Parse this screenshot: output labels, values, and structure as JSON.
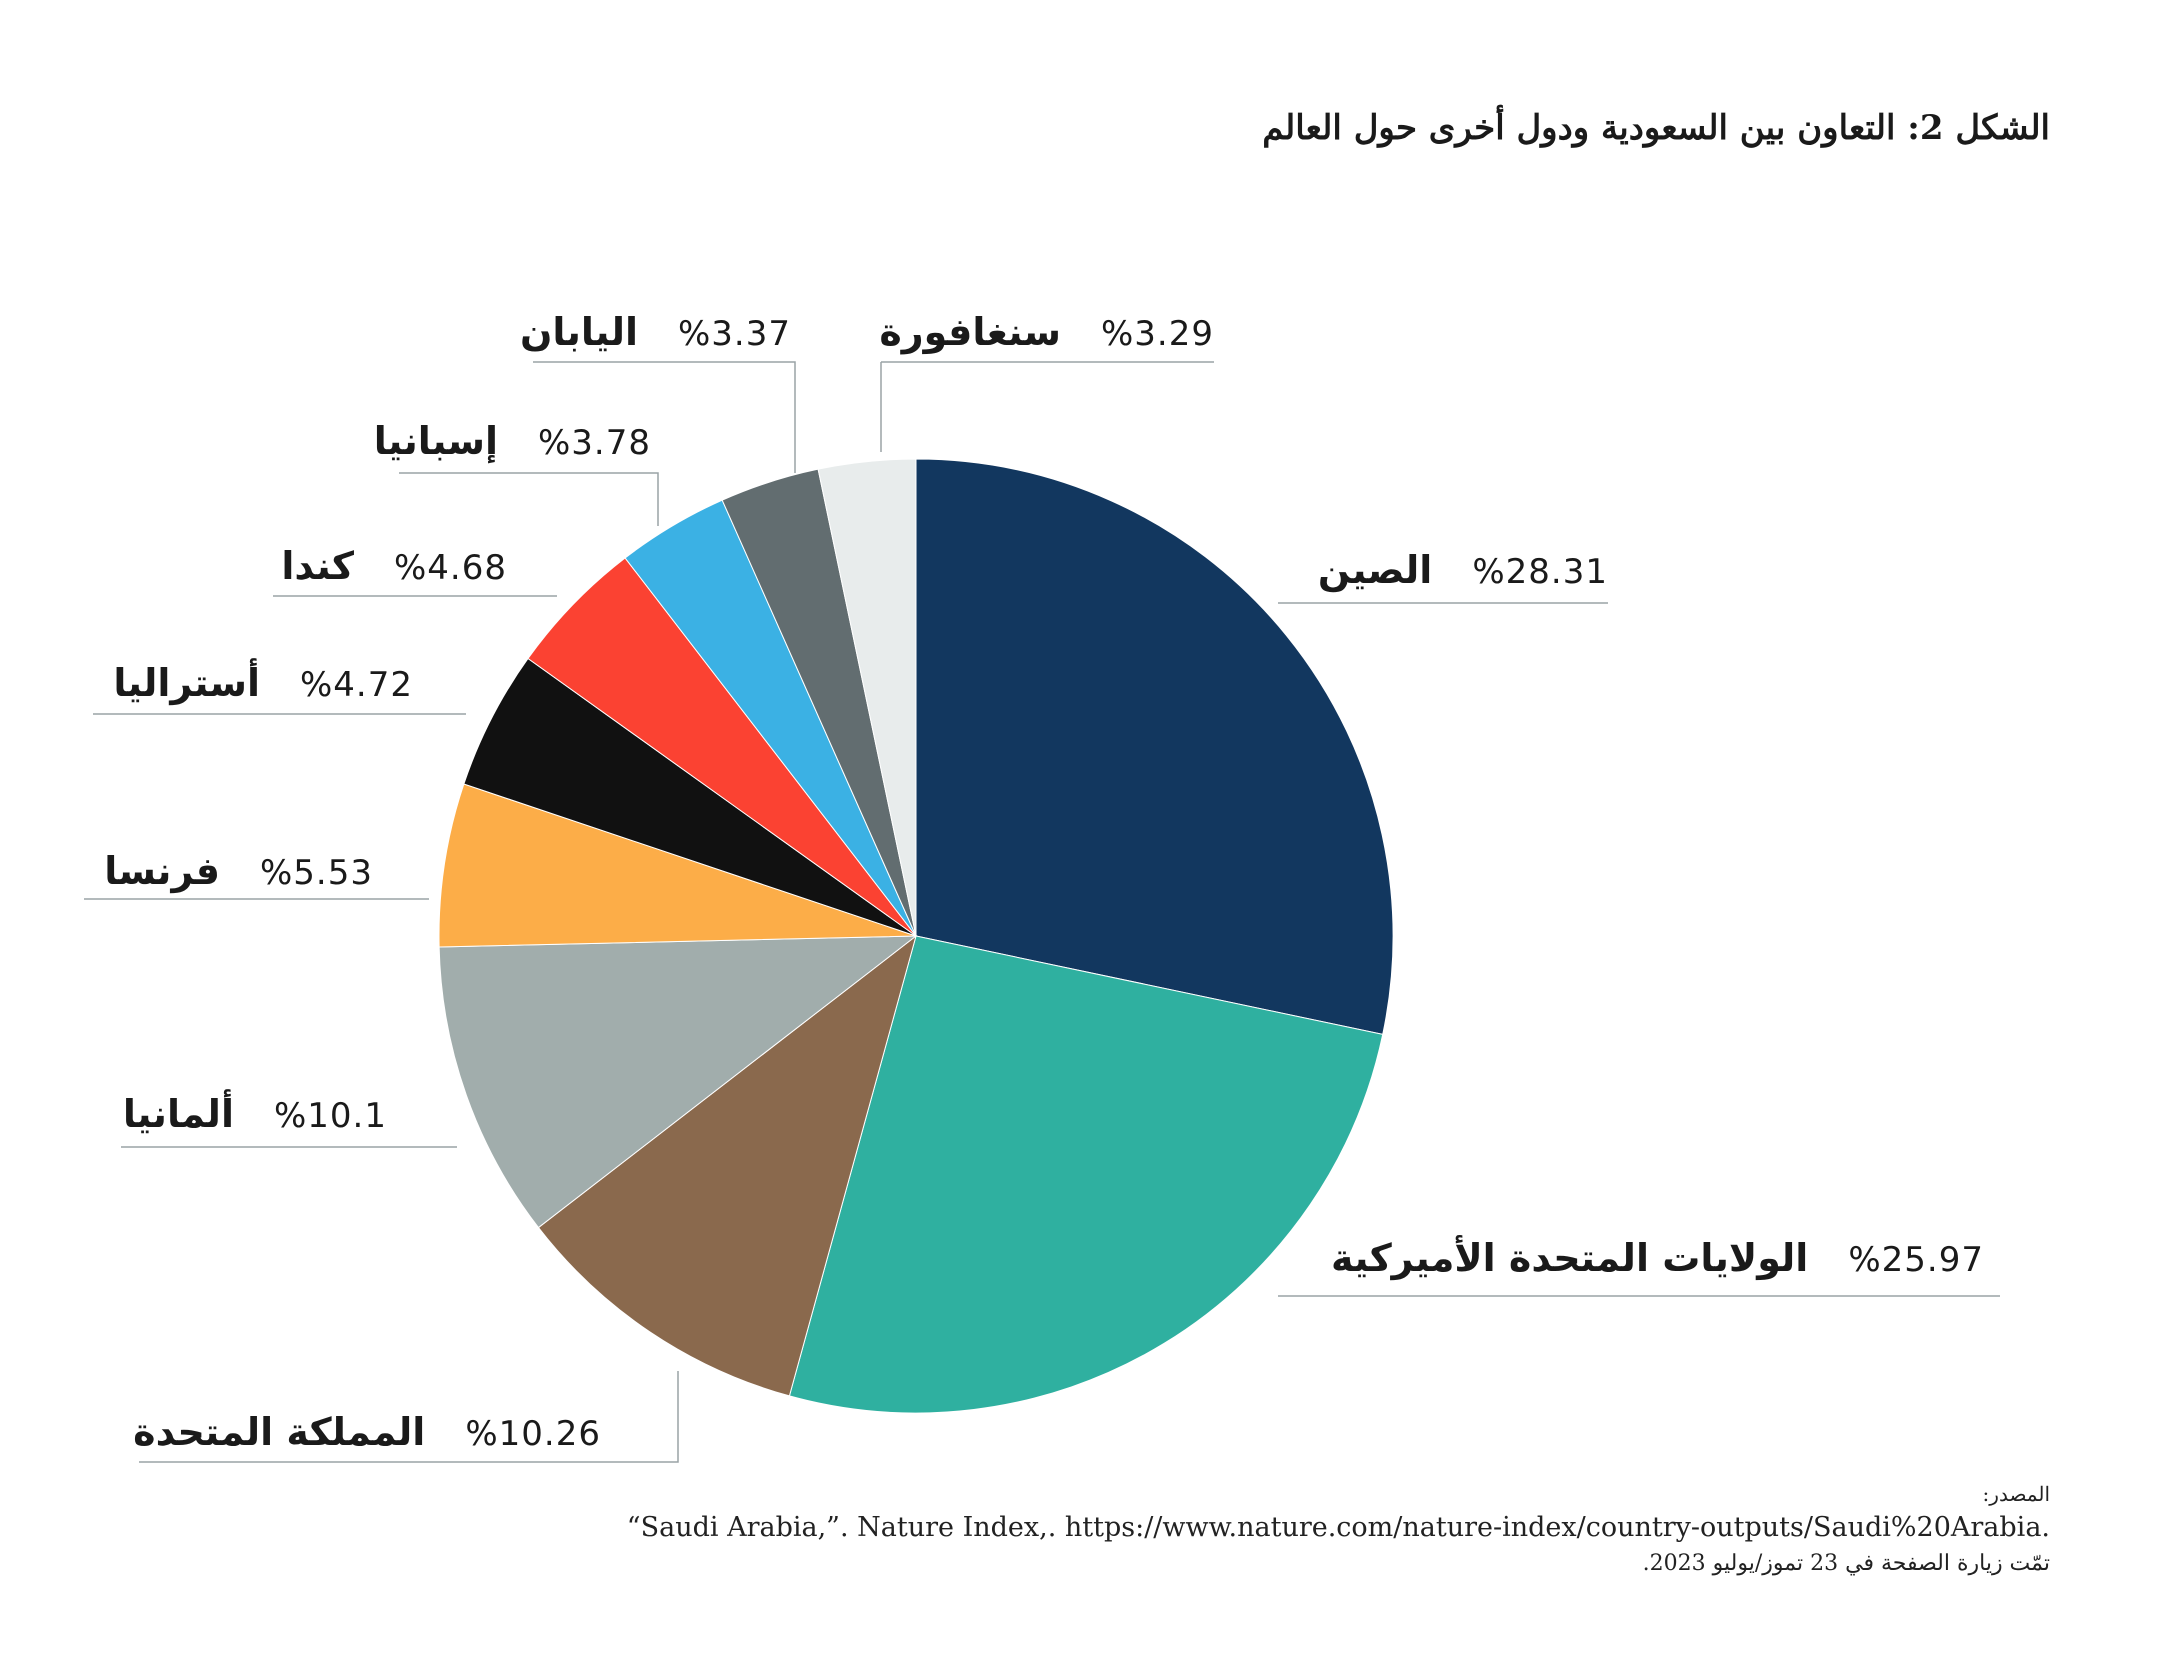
{
  "title": "الشكل 2: التعاون بين السعودية ودول أخرى حول العالم",
  "chart_data": {
    "type": "pie",
    "title": "الشكل 2: التعاون بين السعودية ودول أخرى حول العالم",
    "start": "top, clockwise",
    "categories": [
      "الصين",
      "الولايات المتحدة الأميركية",
      "المملكة المتحدة",
      "ألمانيا",
      "فرنسا",
      "أستراليا",
      "كندا",
      "إسبانيا",
      "اليابان",
      "سنغافورة"
    ],
    "values": [
      28.31,
      25.97,
      10.26,
      10.1,
      5.53,
      4.72,
      4.68,
      3.78,
      3.37,
      3.29
    ],
    "value_labels": [
      "%28.31",
      "%25.97",
      "%10.26",
      "%10.1",
      "%5.53",
      "%4.72",
      "%4.68",
      "%3.78",
      "%3.37",
      "%3.29"
    ],
    "colors": [
      "#12375f",
      "#2fb0a0",
      "#8a694d",
      "#a1adac",
      "#fcad48",
      "#111111",
      "#fb4232",
      "#3bb1e4",
      "#626d70",
      "#e8ecec"
    ]
  },
  "source": {
    "heading": "المصدر:",
    "citation": "“Saudi Arabia,”. Nature Index,. https://www.nature.com/nature-index/country-outputs/Saudi%20Arabia.",
    "visited": "تمّت زيارة الصفحة في 23 تموز/يوليو 2023."
  }
}
